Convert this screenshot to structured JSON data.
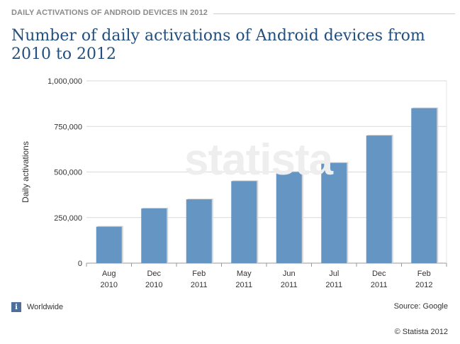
{
  "header": {
    "kicker": "DAILY ACTIVATIONS OF ANDROID DEVICES IN 2012",
    "title": "Number of daily activations of Android devices from 2010 to 2012"
  },
  "watermark": "statista",
  "footer": {
    "info_icon": "info-icon",
    "region": "Worldwide",
    "source": "Source: Google",
    "copyright": "© Statista 2012"
  },
  "colors": {
    "bar": "#6595c2",
    "title": "#234f7e",
    "grid": "#d9d9d9"
  },
  "chart_data": {
    "type": "bar",
    "title": "Number of daily activations of Android devices from 2010 to 2012",
    "ylabel": "Daily activations",
    "xlabel": "",
    "ylim": [
      0,
      1000000
    ],
    "yticks": [
      0,
      250000,
      500000,
      750000,
      1000000
    ],
    "ytick_labels": [
      "0",
      "250,000",
      "500,000",
      "750,000",
      "1,000,000"
    ],
    "categories": [
      [
        "Aug",
        "2010"
      ],
      [
        "Dec",
        "2010"
      ],
      [
        "Feb",
        "2011"
      ],
      [
        "May",
        "2011"
      ],
      [
        "Jun",
        "2011"
      ],
      [
        "Jul",
        "2011"
      ],
      [
        "Dec",
        "2011"
      ],
      [
        "Feb",
        "2012"
      ]
    ],
    "values": [
      200000,
      300000,
      350000,
      450000,
      500000,
      550000,
      700000,
      850000
    ],
    "grid": true,
    "legend": "none"
  }
}
